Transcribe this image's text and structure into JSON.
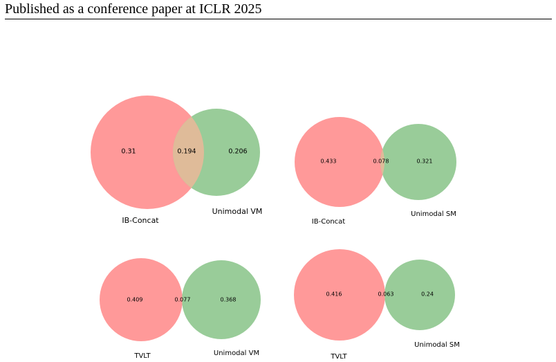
{
  "header": {
    "text": "Published as a conference paper at ICLR 2025"
  },
  "colors": {
    "left_set": "#ff9999",
    "right_set": "#99cc99",
    "overlap": "#dfbb99"
  },
  "chart_data": [
    {
      "type": "venn",
      "sets": [
        "IB-Concat",
        "Unimodal VM"
      ],
      "left_only": "0.31",
      "intersection": "0.194",
      "right_only": "0.206"
    },
    {
      "type": "venn",
      "sets": [
        "IB-Concat",
        "Unimodal SM"
      ],
      "left_only": "0.433",
      "intersection": "0.078",
      "right_only": "0.321"
    },
    {
      "type": "venn",
      "sets": [
        "TVLT",
        "Unimodal VM"
      ],
      "left_only": "0.409",
      "intersection": "0.077",
      "right_only": "0.368"
    },
    {
      "type": "venn",
      "sets": [
        "TVLT",
        "Unimodal SM"
      ],
      "left_only": "0.416",
      "intersection": "0.063",
      "right_only": "0.24"
    }
  ]
}
